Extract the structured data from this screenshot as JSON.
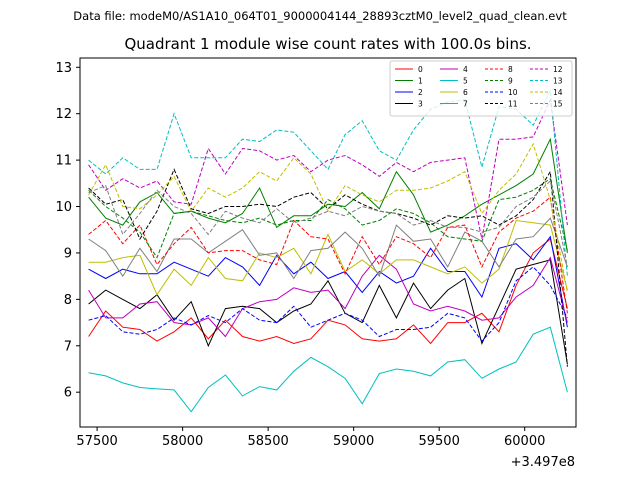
{
  "suptitle": "Data file: modeM0/AS1A10_064T01_9000004144_28893cztM0_level2_quad_clean.evt",
  "chart_data": {
    "type": "line",
    "title": "Quadrant 1 module wise count rates with 100.0s bins.",
    "xlabel": "",
    "ylabel": "",
    "x_offset_label": "+3.497e8",
    "xlim": [
      57400,
      60300
    ],
    "ylim": [
      5.25,
      13.2
    ],
    "x_ticks": [
      57500,
      58000,
      58500,
      59000,
      59500,
      60000
    ],
    "x_tick_labels": [
      "57500",
      "58000",
      "58500",
      "59000",
      "59500",
      "60000"
    ],
    "y_ticks": [
      6,
      7,
      8,
      9,
      10,
      11,
      12,
      13
    ],
    "y_tick_labels": [
      "6",
      "7",
      "8",
      "9",
      "10",
      "11",
      "12",
      "13"
    ],
    "x": [
      57450,
      57550,
      57650,
      57750,
      57850,
      57950,
      58050,
      58150,
      58250,
      58350,
      58450,
      58550,
      58650,
      58750,
      58850,
      58950,
      59050,
      59150,
      59250,
      59350,
      59450,
      59550,
      59650,
      59750,
      59850,
      59950,
      60050,
      60150,
      60250
    ],
    "legend_position": "top-right",
    "series": [
      {
        "name": "0",
        "color": "#ff0000",
        "style": "solid",
        "values": [
          7.2,
          7.75,
          7.4,
          7.35,
          7.1,
          7.3,
          7.6,
          7.15,
          7.55,
          7.2,
          7.1,
          7.2,
          7.05,
          7.15,
          7.55,
          7.45,
          7.15,
          7.1,
          7.15,
          7.45,
          7.05,
          7.5,
          7.5,
          7.7,
          7.3,
          8.3,
          9.0,
          9.3,
          7.8
        ]
      },
      {
        "name": "1",
        "color": "#008000",
        "style": "solid",
        "values": [
          10.2,
          9.75,
          9.6,
          10.1,
          10.3,
          9.85,
          9.9,
          9.75,
          9.65,
          9.85,
          10.4,
          9.55,
          9.8,
          9.8,
          10.05,
          10.0,
          10.3,
          9.95,
          10.75,
          10.25,
          9.45,
          9.6,
          9.8,
          10.05,
          10.25,
          10.45,
          10.7,
          11.45,
          9.0
        ]
      },
      {
        "name": "2",
        "color": "#0000ff",
        "style": "solid",
        "values": [
          8.65,
          8.45,
          8.65,
          8.55,
          8.55,
          8.8,
          8.65,
          8.5,
          8.9,
          8.7,
          8.3,
          8.95,
          8.55,
          8.8,
          8.45,
          8.6,
          8.15,
          8.6,
          8.35,
          8.5,
          9.1,
          8.6,
          8.6,
          8.05,
          9.1,
          9.2,
          8.85,
          9.35,
          7.4
        ]
      },
      {
        "name": "3",
        "color": "#000000",
        "style": "solid",
        "values": [
          7.9,
          8.2,
          8.0,
          7.8,
          8.1,
          7.55,
          7.95,
          7.0,
          7.8,
          7.85,
          7.8,
          7.5,
          7.75,
          7.9,
          8.4,
          7.7,
          7.5,
          8.3,
          7.6,
          8.35,
          7.8,
          8.2,
          8.45,
          7.05,
          7.85,
          8.65,
          8.75,
          8.85,
          6.6
        ]
      },
      {
        "name": "4",
        "color": "#bf00bf",
        "style": "solid",
        "values": [
          8.2,
          7.6,
          7.6,
          7.9,
          7.95,
          7.5,
          7.45,
          7.6,
          7.2,
          7.8,
          7.95,
          8.0,
          8.25,
          8.15,
          8.2,
          7.8,
          8.5,
          8.95,
          8.65,
          7.9,
          7.75,
          7.85,
          7.75,
          7.55,
          7.6,
          8.05,
          8.3,
          8.9,
          7.5
        ]
      },
      {
        "name": "5",
        "color": "#00bfbf",
        "style": "solid",
        "values": [
          6.42,
          6.35,
          6.2,
          6.1,
          6.07,
          6.05,
          5.58,
          6.1,
          6.37,
          5.92,
          6.12,
          6.05,
          6.45,
          6.75,
          6.55,
          6.3,
          5.75,
          6.4,
          6.5,
          6.45,
          6.35,
          6.65,
          6.7,
          6.3,
          6.5,
          6.65,
          7.25,
          7.4,
          6.0
        ]
      },
      {
        "name": "6",
        "color": "#bfbf00",
        "style": "solid",
        "values": [
          8.8,
          8.8,
          8.9,
          8.95,
          8.1,
          8.65,
          8.3,
          8.9,
          8.45,
          8.4,
          9.0,
          8.9,
          9.1,
          8.55,
          9.4,
          8.6,
          8.85,
          8.55,
          8.85,
          8.85,
          8.7,
          8.55,
          8.7,
          8.35,
          8.65,
          9.7,
          9.65,
          9.6,
          8.2
        ]
      },
      {
        "name": "7",
        "color": "#808080",
        "style": "solid",
        "values": [
          9.3,
          9.05,
          8.5,
          9.1,
          8.6,
          9.3,
          9.3,
          9.0,
          9.25,
          9.5,
          8.95,
          9.0,
          8.45,
          9.05,
          9.1,
          9.45,
          9.1,
          8.5,
          9.6,
          9.25,
          9.3,
          8.7,
          9.45,
          9.25,
          8.7,
          9.3,
          9.35,
          9.75,
          8.7
        ]
      },
      {
        "name": "8",
        "color": "#ff0000",
        "style": "dashed",
        "values": [
          9.4,
          9.7,
          9.2,
          9.6,
          8.75,
          9.2,
          9.55,
          9.0,
          9.05,
          9.05,
          8.85,
          8.75,
          9.7,
          9.35,
          9.3,
          8.55,
          9.35,
          8.75,
          9.35,
          9.2,
          8.9,
          9.55,
          9.6,
          8.7,
          9.45,
          9.75,
          9.9,
          10.2,
          7.7
        ]
      },
      {
        "name": "9",
        "color": "#008000",
        "style": "dashed",
        "values": [
          10.35,
          10.0,
          9.75,
          9.45,
          8.9,
          9.85,
          9.9,
          9.8,
          9.7,
          9.65,
          9.75,
          9.6,
          9.7,
          9.7,
          10.15,
          9.95,
          9.6,
          9.7,
          9.95,
          9.85,
          9.65,
          9.35,
          9.3,
          9.25,
          10.15,
          10.2,
          10.35,
          10.6,
          9.05
        ]
      },
      {
        "name": "10",
        "color": "#0000ff",
        "style": "dashed",
        "values": [
          7.55,
          7.65,
          7.3,
          7.25,
          7.35,
          7.6,
          7.45,
          7.65,
          7.5,
          7.8,
          7.55,
          7.5,
          7.85,
          7.4,
          7.55,
          7.7,
          7.55,
          7.2,
          7.35,
          7.35,
          7.4,
          7.7,
          7.6,
          7.1,
          7.5,
          8.4,
          8.7,
          8.3,
          7.6
        ]
      },
      {
        "name": "11",
        "color": "#000000",
        "style": "dashed",
        "values": [
          10.4,
          10.05,
          10.15,
          9.3,
          9.9,
          10.8,
          9.95,
          9.85,
          10.0,
          10.0,
          10.05,
          10.0,
          10.2,
          10.3,
          9.95,
          10.25,
          10.05,
          9.9,
          9.85,
          9.75,
          9.6,
          9.8,
          9.75,
          9.8,
          9.6,
          9.8,
          10.15,
          10.75,
          6.55
        ]
      },
      {
        "name": "12",
        "color": "#bf00bf",
        "style": "dashed",
        "values": [
          10.9,
          10.35,
          10.6,
          10.4,
          10.55,
          10.1,
          10.05,
          11.25,
          10.7,
          11.25,
          11.2,
          11.0,
          11.1,
          10.75,
          11.0,
          11.1,
          10.9,
          10.65,
          10.95,
          10.75,
          10.95,
          11.0,
          11.05,
          9.3,
          11.45,
          11.45,
          11.5,
          12.3,
          9.6
        ]
      },
      {
        "name": "13",
        "color": "#00bfbf",
        "style": "dashed",
        "values": [
          11.0,
          10.7,
          11.05,
          10.8,
          10.8,
          12.0,
          11.05,
          11.05,
          11.05,
          11.45,
          11.4,
          11.65,
          11.6,
          11.2,
          10.8,
          11.55,
          11.85,
          11.2,
          11.0,
          11.65,
          12.1,
          12.25,
          12.3,
          10.85,
          12.15,
          12.1,
          11.75,
          12.5,
          8.5
        ]
      },
      {
        "name": "14",
        "color": "#bfbf00",
        "style": "dashed",
        "values": [
          10.25,
          10.9,
          10.0,
          9.95,
          10.25,
          10.65,
          9.9,
          10.4,
          10.2,
          10.4,
          10.75,
          10.55,
          11.05,
          10.7,
          9.9,
          10.45,
          10.25,
          10.1,
          10.35,
          10.35,
          10.4,
          10.55,
          10.75,
          9.85,
          10.35,
          10.7,
          11.35,
          10.15,
          8.15
        ]
      },
      {
        "name": "15",
        "color": "#808080",
        "style": "dashed",
        "values": [
          10.3,
          10.45,
          9.4,
          9.85,
          10.35,
          10.0,
          9.85,
          9.4,
          9.9,
          9.75,
          9.65,
          9.95,
          9.65,
          9.75,
          9.9,
          9.8,
          10.0,
          9.9,
          9.85,
          9.6,
          9.7,
          9.55,
          9.55,
          9.45,
          9.55,
          10.0,
          10.2,
          10.55,
          8.7
        ]
      }
    ]
  }
}
